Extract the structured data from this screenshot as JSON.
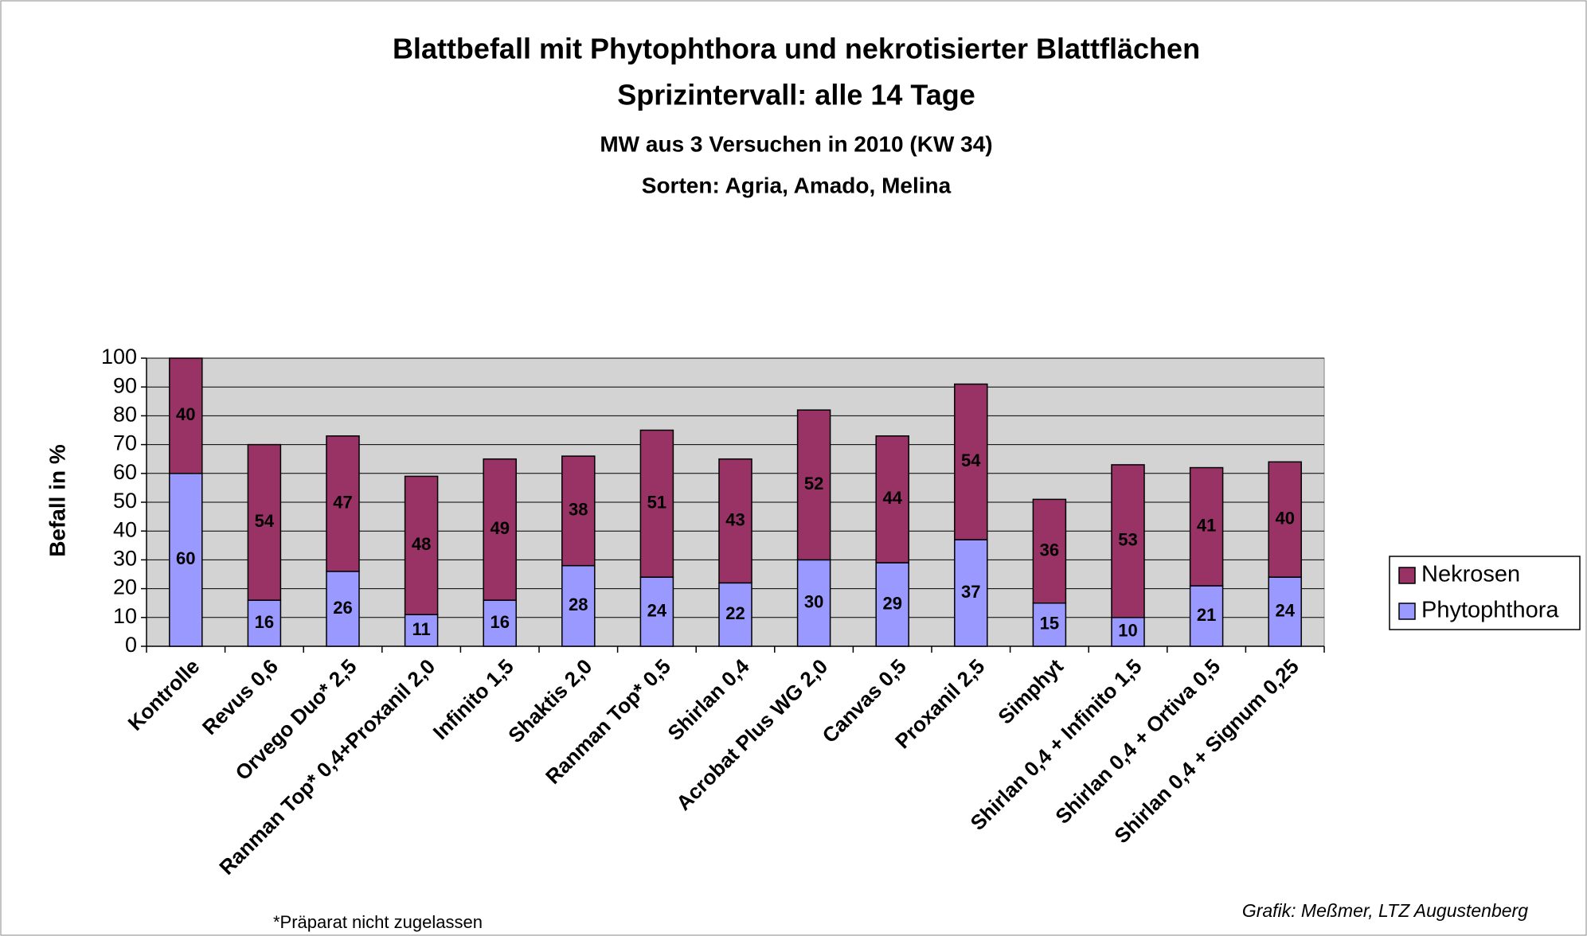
{
  "chart_data": {
    "type": "stacked_bar",
    "title": "Blattbefall mit Phytophthora und nekrotisierter Blattflächen",
    "subtitle": "Sprizintervall: alle 14 Tage",
    "subtitle2": "MW aus 3 Versuchen in 2010 (KW 34)",
    "subtitle3": "Sorten: Agria, Amado, Melina",
    "y_label": "Befall in %",
    "categories": [
      "Kontrolle",
      "Revus 0,6",
      "Orvego Duo* 2,5",
      "Ranman Top* 0,4+Proxanil 2,0",
      "Infinito 1,5",
      "Shaktis 2,0",
      "Ranman Top* 0,5",
      "Shirlan 0,4",
      "Acrobat Plus WG 2,0",
      "Canvas 0,5",
      "Proxanil 2,5",
      "Simphyt",
      "Shirlan 0,4 + Infinito 1,5",
      "Shirlan 0,4 + Ortiva 0,5",
      "Shirlan 0,4 + Signum 0,25"
    ],
    "series": [
      {
        "name": "Phytophthora",
        "color": "#9999ff",
        "label_color": "#000000",
        "values": [
          60,
          16,
          26,
          11,
          16,
          28,
          24,
          22,
          30,
          29,
          37,
          15,
          10,
          21,
          24
        ]
      },
      {
        "name": "Nekrosen",
        "color": "#993366",
        "label_color": "#ffffff",
        "values": [
          40,
          54,
          47,
          48,
          49,
          38,
          51,
          43,
          52,
          44,
          54,
          36,
          53,
          41,
          40
        ]
      }
    ],
    "ylim": [
      0,
      100
    ],
    "yticks": [
      0,
      10,
      20,
      30,
      40,
      50,
      60,
      70,
      80,
      90,
      100
    ],
    "grid": true,
    "legend": "right",
    "footnote": "*Präparat nicht zugelassen",
    "credit": "Grafik: Meßmer, LTZ Augustenberg"
  }
}
